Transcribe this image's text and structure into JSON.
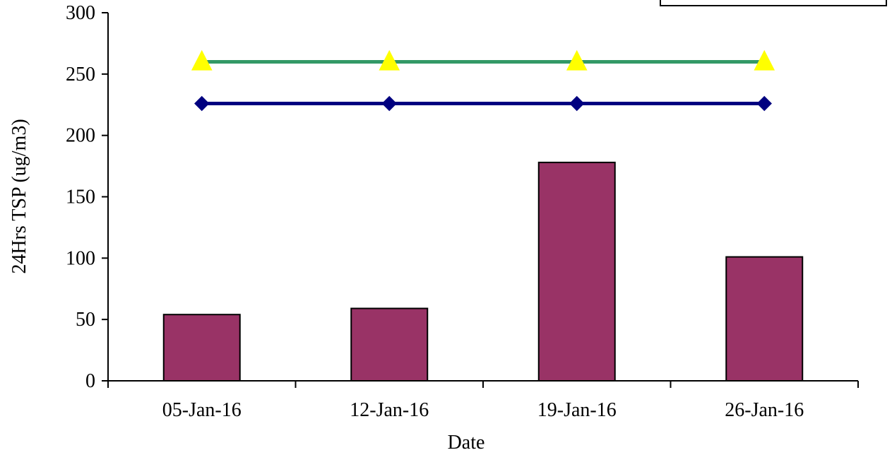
{
  "chart_data": {
    "type": "bar",
    "title": "",
    "xlabel": "Date",
    "ylabel": "24Hrs TSP (ug/m3)",
    "categories": [
      "05-Jan-16",
      "12-Jan-16",
      "19-Jan-16",
      "26-Jan-16"
    ],
    "ylim": [
      0,
      300
    ],
    "yticks": [
      0,
      50,
      100,
      150,
      200,
      250,
      300
    ],
    "grid": false,
    "series": [
      {
        "type": "bar",
        "values": [
          54,
          59,
          178,
          101
        ],
        "color": "#993366"
      },
      {
        "type": "line",
        "marker": "triangle",
        "values": [
          260,
          260,
          260,
          260
        ],
        "color": "#339966",
        "marker_color": "#ffff00"
      },
      {
        "type": "line",
        "marker": "diamond",
        "values": [
          226,
          226,
          226,
          226
        ],
        "color": "#000080",
        "marker_color": "#000080"
      }
    ],
    "legend": {
      "placement": "top-right",
      "entries": []
    }
  }
}
